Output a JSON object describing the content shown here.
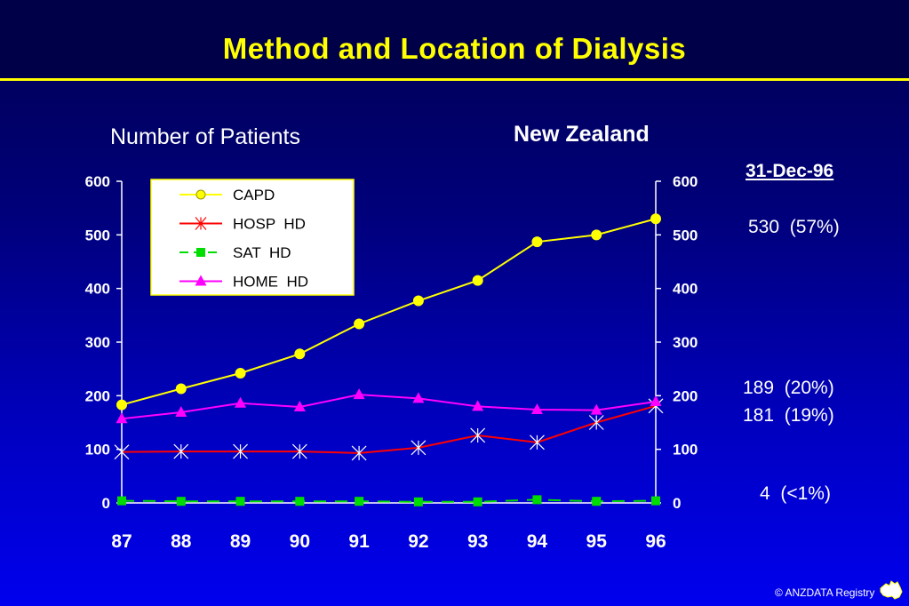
{
  "title": "Method and Location of Dialysis",
  "y_axis_label": "Number of Patients",
  "region": "New Zealand",
  "date_label": "31-Dec-96",
  "summary_values": [
    "530  (57%)",
    "189  (20%)",
    "181  (19%)",
    "4  (<1%)"
  ],
  "copyright": "© ANZDATA Registry",
  "colors": {
    "title": "#ffff00",
    "CAPD": "#ffff00",
    "HOSP HD": "#ff0000",
    "SAT HD": "#00dd00",
    "HOME HD": "#ff00ff",
    "legend_bg": "#ffffff",
    "legend_border": "#ffff00"
  },
  "chart_data": {
    "type": "line",
    "x": [
      "87",
      "88",
      "89",
      "90",
      "91",
      "92",
      "93",
      "94",
      "95",
      "96"
    ],
    "ylim": [
      0,
      600
    ],
    "y_ticks": [
      "0",
      "100",
      "200",
      "300",
      "400",
      "500",
      "600"
    ],
    "right_axis_mirror": true,
    "legend_position": "top-left",
    "grid": false,
    "series": [
      {
        "name": "CAPD",
        "marker": "circle",
        "line_style": "solid",
        "values": [
          183,
          213,
          242,
          278,
          334,
          377,
          415,
          487,
          500,
          530
        ]
      },
      {
        "name": "HOSP  HD",
        "marker": "x",
        "line_style": "solid",
        "values": [
          95,
          96,
          96,
          96,
          93,
          103,
          126,
          113,
          150,
          181
        ]
      },
      {
        "name": "SAT  HD",
        "marker": "square",
        "line_style": "dashed",
        "values": [
          4,
          3,
          3,
          3,
          3,
          2,
          2,
          6,
          3,
          4
        ]
      },
      {
        "name": "HOME  HD",
        "marker": "triangle",
        "line_style": "solid",
        "values": [
          157,
          169,
          186,
          179,
          202,
          195,
          180,
          174,
          173,
          189
        ]
      }
    ]
  }
}
